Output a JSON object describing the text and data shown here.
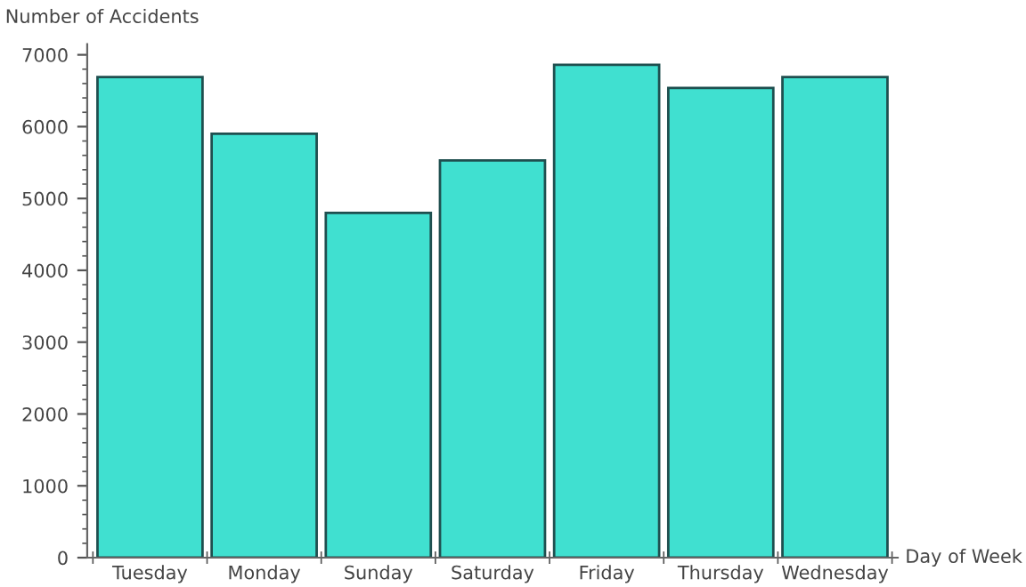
{
  "chart_data": {
    "type": "bar",
    "xlabel": "Day of Week",
    "ylabel": "Number of Accidents",
    "categories": [
      "Tuesday",
      "Monday",
      "Sunday",
      "Saturday",
      "Friday",
      "Thursday",
      "Wednesday"
    ],
    "values": [
      6690,
      5900,
      4800,
      5530,
      6860,
      6540,
      6690
    ],
    "color": "#40e0d0",
    "ylim": [
      0,
      7150
    ],
    "yticks": [
      0,
      1000,
      2000,
      3000,
      4000,
      5000,
      6000,
      7000
    ],
    "grid": false
  }
}
